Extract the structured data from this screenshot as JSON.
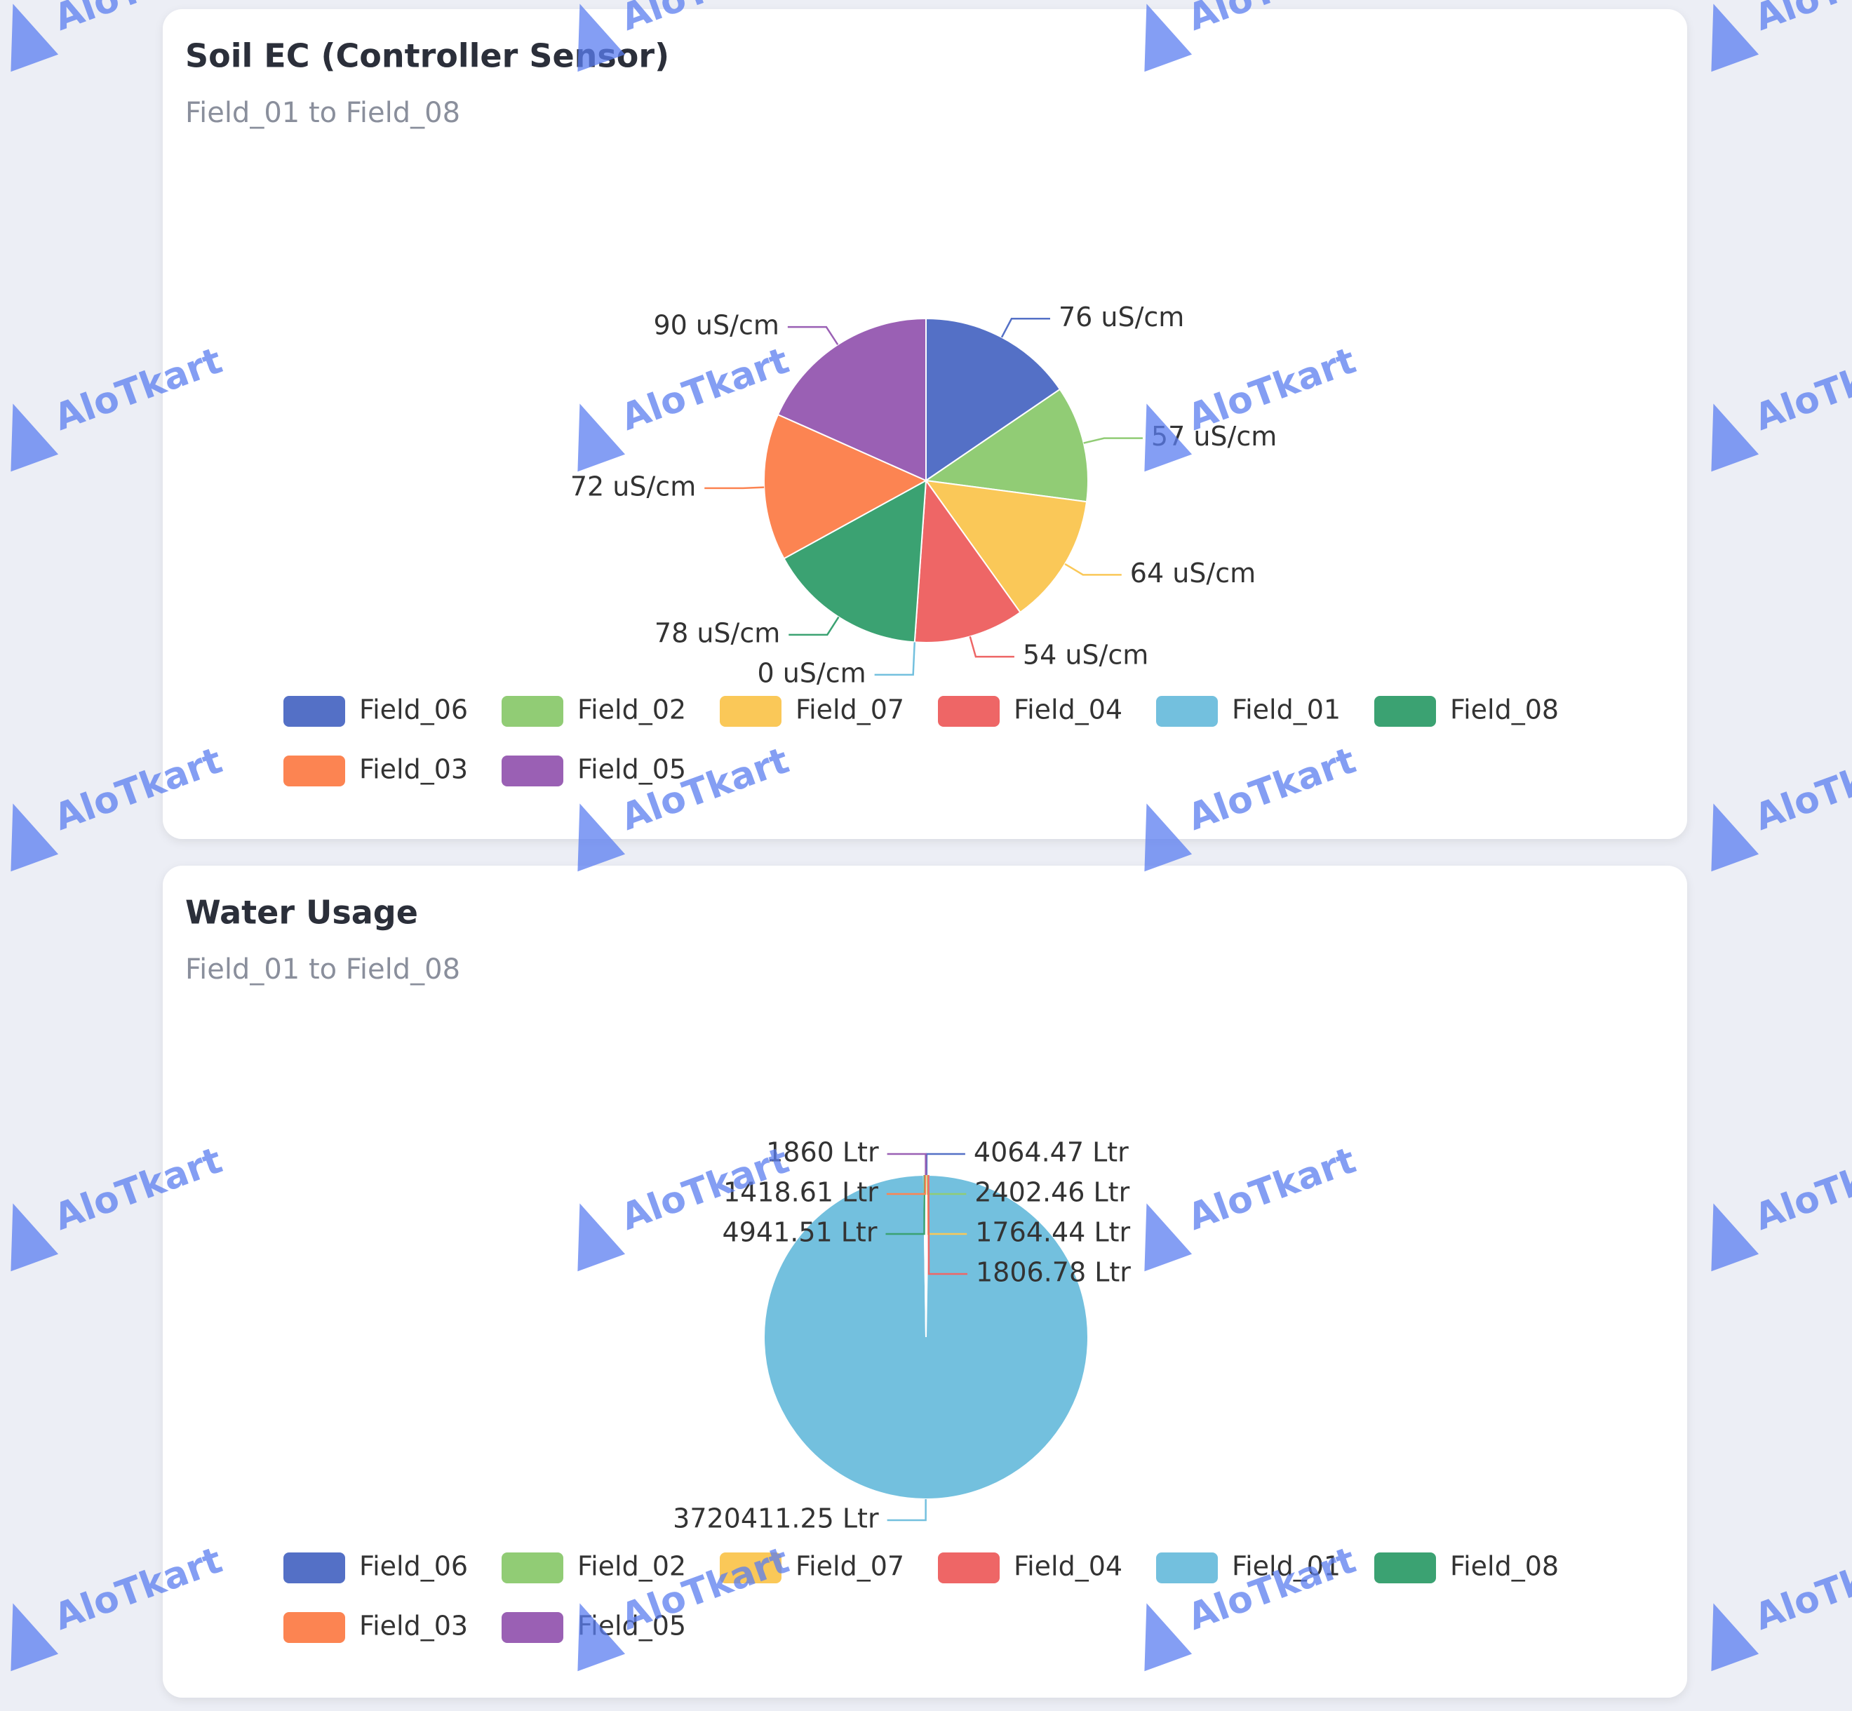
{
  "watermark": "AloTkart",
  "chart_data": [
    {
      "type": "pie",
      "title": "Soil EC (Controller Sensor)",
      "subtitle": "Field_01 to Field_08",
      "categories": [
        "Field_06",
        "Field_02",
        "Field_07",
        "Field_04",
        "Field_01",
        "Field_08",
        "Field_03",
        "Field_05"
      ],
      "values": [
        76,
        57,
        64,
        54,
        0,
        78,
        72,
        90
      ],
      "value_labels": [
        "76 uS/cm",
        "57 uS/cm",
        "64 uS/cm",
        "54 uS/cm",
        "0 uS/cm",
        "78 uS/cm",
        "72 uS/cm",
        "90 uS/cm"
      ],
      "colors": [
        "#5470c6",
        "#91cc75",
        "#fac858",
        "#ee6666",
        "#73c0de",
        "#3ba272",
        "#fc8452",
        "#9a60b4"
      ]
    },
    {
      "type": "pie",
      "title": "Water Usage",
      "subtitle": "Field_01 to Field_08",
      "categories": [
        "Field_06",
        "Field_02",
        "Field_07",
        "Field_04",
        "Field_01",
        "Field_08",
        "Field_03",
        "Field_05"
      ],
      "values": [
        4064.47,
        2402.46,
        1764.44,
        1806.78,
        3720411.25,
        4941.51,
        1418.61,
        1860
      ],
      "value_labels": [
        "4064.47 Ltr",
        "2402.46 Ltr",
        "1764.44 Ltr",
        "1806.78 Ltr",
        "3720411.25 Ltr",
        "4941.51 Ltr",
        "1418.61 Ltr",
        "1860 Ltr"
      ],
      "colors": [
        "#5470c6",
        "#91cc75",
        "#fac858",
        "#ee6666",
        "#73c0de",
        "#3ba272",
        "#fc8452",
        "#9a60b4"
      ]
    }
  ]
}
